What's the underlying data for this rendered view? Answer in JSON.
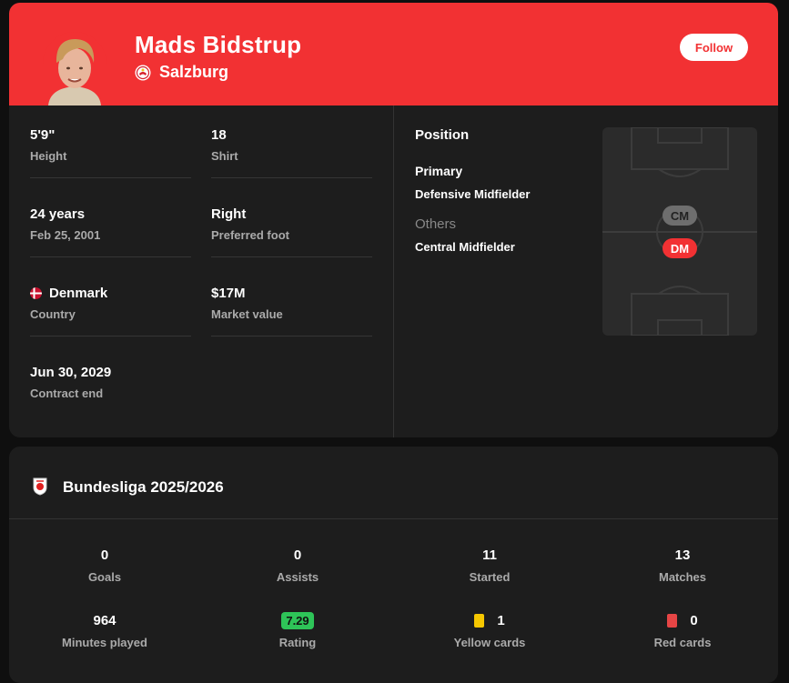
{
  "player": {
    "name": "Mads Bidstrup",
    "club": "Salzburg",
    "follow_label": "Follow"
  },
  "info": {
    "height_value": "5'9\"",
    "height_label": "Height",
    "shirt_value": "18",
    "shirt_label": "Shirt",
    "age_value": "24 years",
    "age_label": "Feb 25, 2001",
    "foot_value": "Right",
    "foot_label": "Preferred foot",
    "country_value": "Denmark",
    "country_label": "Country",
    "market_value": "$17M",
    "market_label": "Market value",
    "contract_value": "Jun 30, 2029",
    "contract_label": "Contract end"
  },
  "position": {
    "title": "Position",
    "primary_label": "Primary",
    "primary_value": "Defensive Midfielder",
    "others_label": "Others",
    "others_value": "Central Midfielder",
    "chip_secondary": "CM",
    "chip_primary": "DM"
  },
  "league": {
    "name": "Bundesliga 2025/2026"
  },
  "stats": {
    "goals_value": "0",
    "goals_label": "Goals",
    "assists_value": "0",
    "assists_label": "Assists",
    "started_value": "11",
    "started_label": "Started",
    "matches_value": "13",
    "matches_label": "Matches",
    "minutes_value": "964",
    "minutes_label": "Minutes played",
    "rating_value": "7.29",
    "rating_label": "Rating",
    "yellow_value": "1",
    "yellow_label": "Yellow cards",
    "red_value": "0",
    "red_label": "Red cards"
  },
  "colors": {
    "header": "#f23133",
    "card_bg": "#1d1d1d",
    "rating": "#2ec458",
    "yellow": "#f6c700",
    "red": "#e64545"
  },
  "icons": [
    "player-photo",
    "salzburg-logo-icon",
    "denmark-flag-icon",
    "bundesliga-logo-icon",
    "yellow-card-icon",
    "red-card-icon"
  ]
}
